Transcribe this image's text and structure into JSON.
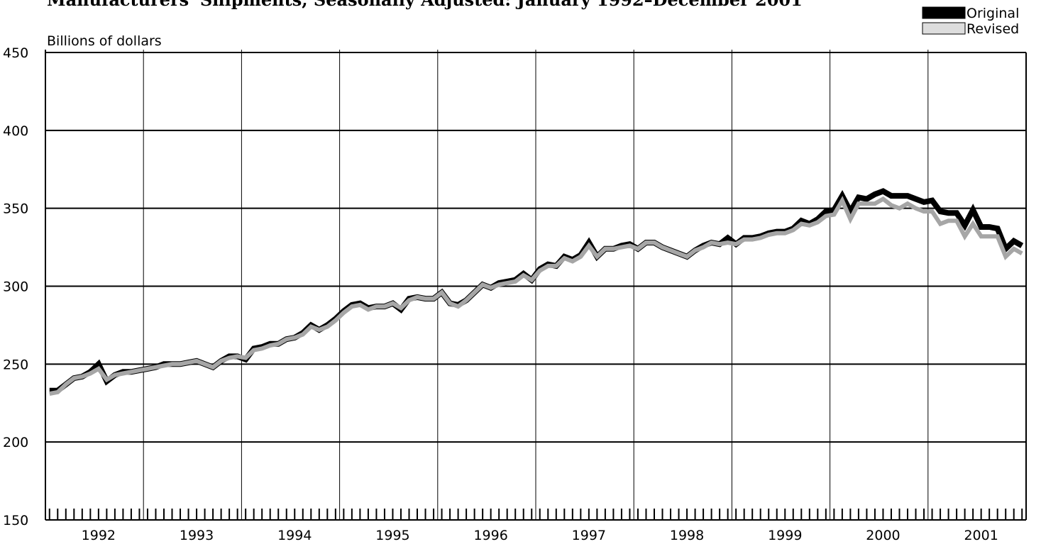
{
  "chart_data": {
    "type": "line",
    "title": "Manufacturers' Shipments, Seasonally Adjusted: January 1992–December 2001",
    "y_label": "Billions of dollars",
    "legend": "upper right",
    "grid": true,
    "ylim": [
      150,
      450
    ],
    "yticks": [
      150,
      200,
      250,
      300,
      350,
      400,
      450
    ],
    "categories": [
      null,
      null,
      null,
      null,
      null,
      null,
      "1992",
      null,
      null,
      null,
      null,
      null,
      null,
      null,
      null,
      null,
      null,
      null,
      "1993",
      null,
      null,
      null,
      null,
      null,
      null,
      null,
      null,
      null,
      null,
      null,
      "1994",
      null,
      null,
      null,
      null,
      null,
      null,
      null,
      null,
      null,
      null,
      null,
      "1995",
      null,
      null,
      null,
      null,
      null,
      null,
      null,
      null,
      null,
      null,
      null,
      "1996",
      null,
      null,
      null,
      null,
      null,
      null,
      null,
      null,
      null,
      null,
      null,
      "1997",
      null,
      null,
      null,
      null,
      null,
      null,
      null,
      null,
      null,
      null,
      null,
      "1998",
      null,
      null,
      null,
      null,
      null,
      null,
      null,
      null,
      null,
      null,
      null,
      "1999",
      null,
      null,
      null,
      null,
      null,
      null,
      null,
      null,
      null,
      null,
      null,
      "2000",
      null,
      null,
      null,
      null,
      null,
      null,
      null,
      null,
      null,
      null,
      null,
      "2001",
      null,
      null,
      null,
      null,
      null
    ],
    "series": [
      {
        "name": "Original",
        "color": "#000000",
        "values": [
          233,
          233,
          237,
          241,
          242,
          245,
          250,
          239,
          243,
          245,
          245,
          246,
          247,
          248,
          250,
          250,
          250,
          251,
          252,
          250,
          248,
          252,
          255,
          255,
          253,
          260,
          261,
          263,
          263,
          266,
          267,
          270,
          275,
          272,
          275,
          279,
          284,
          288,
          289,
          286,
          287,
          287,
          289,
          285,
          292,
          293,
          292,
          292,
          296,
          289,
          288,
          291,
          296,
          301,
          299,
          302,
          303,
          304,
          308,
          304,
          311,
          314,
          313,
          319,
          317,
          320,
          328,
          319,
          324,
          324,
          326,
          327,
          324,
          328,
          328,
          325,
          323,
          321,
          319,
          323,
          326,
          328,
          327,
          331,
          327,
          331,
          331,
          332,
          334,
          335,
          335,
          337,
          342,
          340,
          343,
          348,
          349,
          358,
          348,
          357,
          356,
          359,
          361,
          358,
          358,
          358,
          356,
          354,
          355,
          348,
          347,
          347,
          339,
          349,
          338,
          338,
          337,
          324,
          329,
          326
        ]
      },
      {
        "name": "Revised",
        "color": "#a6a6a6",
        "values": [
          231,
          232,
          237,
          241,
          242,
          244,
          247,
          240,
          243,
          244,
          245,
          246,
          247,
          248,
          249,
          250,
          250,
          251,
          252,
          250,
          248,
          252,
          254,
          255,
          254,
          259,
          260,
          262,
          263,
          266,
          267,
          269,
          274,
          272,
          274,
          278,
          283,
          287,
          288,
          285,
          287,
          287,
          289,
          286,
          291,
          293,
          292,
          292,
          296,
          289,
          287,
          291,
          296,
          301,
          299,
          301,
          302,
          303,
          307,
          304,
          310,
          313,
          313,
          318,
          316,
          319,
          326,
          319,
          324,
          324,
          325,
          326,
          324,
          328,
          328,
          325,
          323,
          321,
          319,
          323,
          325,
          328,
          327,
          328,
          327,
          330,
          330,
          331,
          333,
          334,
          334,
          336,
          340,
          339,
          341,
          345,
          346,
          355,
          343,
          353,
          353,
          353,
          356,
          352,
          350,
          353,
          350,
          348,
          348,
          340,
          342,
          342,
          332,
          340,
          332,
          332,
          332,
          319,
          324,
          321
        ]
      }
    ]
  }
}
